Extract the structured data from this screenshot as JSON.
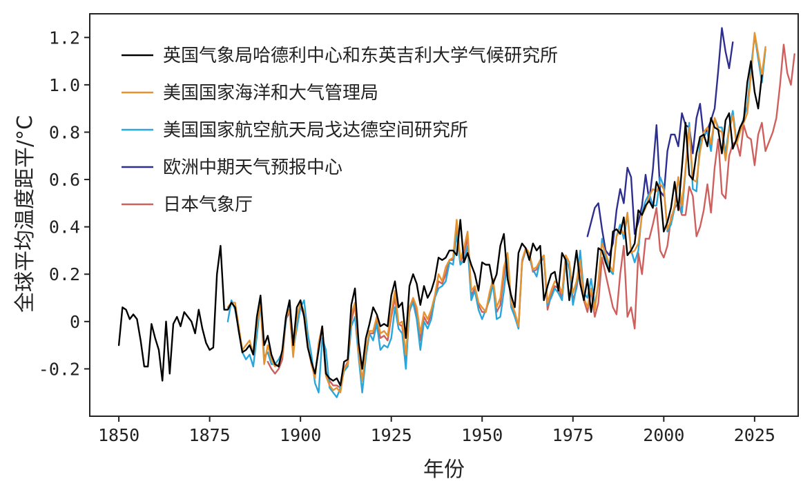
{
  "chart_data": {
    "type": "line",
    "xlabel": "年份",
    "ylabel": "全球平均温度距平/°C",
    "xlim": [
      1842,
      2037
    ],
    "ylim": [
      -0.4,
      1.3
    ],
    "xticks": [
      1850,
      1875,
      1900,
      1925,
      1950,
      1975,
      2000,
      2025
    ],
    "yticks": [
      {
        "value": -0.2,
        "label": "-0.2"
      },
      {
        "value": 0.0,
        "label": "0"
      },
      {
        "value": 0.2,
        "label": "0.2"
      },
      {
        "value": 0.4,
        "label": "0.4"
      },
      {
        "value": 0.6,
        "label": "0.6"
      },
      {
        "value": 0.8,
        "label": "0.8"
      },
      {
        "value": 1.0,
        "label": "1.0"
      },
      {
        "value": 1.2,
        "label": "1.2"
      }
    ],
    "grid": false,
    "legend_position": "top-left",
    "series": [
      {
        "name": "英国气象局哈德利中心和东英吉利大学气候研究所",
        "color": "#000000",
        "x_start": 1850,
        "values": [
          -0.1,
          0.06,
          0.05,
          0.01,
          0.03,
          0.01,
          -0.08,
          -0.19,
          -0.19,
          -0.01,
          -0.07,
          -0.12,
          -0.25,
          0.0,
          -0.22,
          -0.01,
          0.02,
          -0.02,
          0.04,
          0.02,
          0.0,
          -0.05,
          0.05,
          -0.03,
          -0.09,
          -0.12,
          -0.11,
          0.2,
          0.32,
          0.05,
          0.05,
          0.08,
          0.06,
          -0.04,
          -0.13,
          -0.12,
          -0.1,
          -0.14,
          0.02,
          0.11,
          -0.1,
          -0.06,
          -0.14,
          -0.18,
          -0.19,
          -0.12,
          0.02,
          0.09,
          -0.1,
          0.06,
          0.09,
          0.02,
          -0.11,
          -0.17,
          -0.22,
          -0.12,
          -0.02,
          -0.22,
          -0.24,
          -0.25,
          -0.24,
          -0.27,
          -0.17,
          -0.16,
          0.07,
          0.14,
          -0.09,
          -0.2,
          -0.07,
          -0.01,
          0.06,
          0.03,
          -0.02,
          -0.01,
          -0.02,
          0.11,
          0.17,
          0.06,
          0.08,
          -0.07,
          0.15,
          0.2,
          0.16,
          0.07,
          0.15,
          0.1,
          0.13,
          0.18,
          0.27,
          0.26,
          0.27,
          0.3,
          0.3,
          0.28,
          0.43,
          0.25,
          0.29,
          0.24,
          0.2,
          0.13,
          0.25,
          0.24,
          0.24,
          0.16,
          0.2,
          0.32,
          0.37,
          0.18,
          0.11,
          0.06,
          0.29,
          0.33,
          0.31,
          0.26,
          0.33,
          0.3,
          0.32,
          0.09,
          0.15,
          0.2,
          0.21,
          0.13,
          0.29,
          0.26,
          0.09,
          0.19,
          0.3,
          0.16,
          0.09,
          0.18,
          0.04,
          0.15,
          0.31,
          0.3,
          0.25,
          0.21,
          0.38,
          0.39,
          0.37,
          0.44,
          0.28,
          0.3,
          0.33,
          0.47,
          0.45,
          0.49,
          0.51,
          0.48,
          0.59,
          0.55,
          0.38,
          0.42,
          0.48,
          0.59,
          0.47,
          0.65,
          0.84,
          0.62,
          0.6,
          0.71,
          0.78,
          0.79,
          0.74,
          0.86,
          0.82,
          0.81,
          0.71,
          0.85,
          0.88,
          0.73,
          0.77,
          0.82,
          0.85,
          1.01,
          1.1,
          0.97,
          0.9,
          1.04
        ]
      },
      {
        "name": "美国国家海洋和大气管理局",
        "color": "#e8922e",
        "x_start": 1880,
        "values": [
          0.06,
          0.08,
          0.08,
          -0.02,
          -0.12,
          -0.1,
          -0.08,
          -0.14,
          -0.01,
          0.07,
          -0.18,
          -0.1,
          -0.16,
          -0.19,
          -0.18,
          -0.14,
          0.02,
          0.05,
          -0.15,
          0.02,
          0.08,
          0.04,
          -0.1,
          -0.18,
          -0.24,
          -0.09,
          -0.02,
          -0.23,
          -0.27,
          -0.29,
          -0.28,
          -0.3,
          -0.2,
          -0.18,
          0.03,
          0.08,
          -0.13,
          -0.25,
          -0.12,
          -0.04,
          -0.04,
          0.02,
          -0.05,
          -0.04,
          -0.06,
          0.04,
          0.13,
          -0.01,
          0.0,
          -0.14,
          0.06,
          0.1,
          0.06,
          -0.05,
          0.04,
          0.01,
          0.05,
          0.11,
          0.2,
          0.17,
          0.23,
          0.26,
          0.27,
          0.43,
          0.26,
          0.31,
          0.38,
          0.13,
          0.15,
          0.08,
          0.06,
          0.04,
          0.12,
          0.18,
          0.06,
          0.1,
          0.23,
          0.29,
          0.08,
          0.04,
          -0.02,
          0.26,
          0.31,
          0.29,
          0.22,
          0.23,
          0.26,
          0.28,
          0.08,
          0.13,
          0.17,
          0.16,
          0.12,
          0.28,
          0.25,
          0.12,
          0.17,
          0.26,
          0.1,
          0.06,
          0.14,
          0.05,
          0.17,
          0.33,
          0.29,
          0.24,
          0.21,
          0.36,
          0.39,
          0.37,
          0.46,
          0.29,
          0.3,
          0.33,
          0.45,
          0.48,
          0.53,
          0.56,
          0.55,
          0.58,
          0.56,
          0.39,
          0.43,
          0.49,
          0.61,
          0.49,
          0.65,
          0.82,
          0.6,
          0.59,
          0.72,
          0.8,
          0.82,
          0.75,
          0.86,
          0.81,
          0.8,
          0.68,
          0.81,
          0.87,
          0.75,
          0.8,
          0.84,
          0.88,
          1.04,
          1.22,
          1.13,
          1.04,
          1.16
        ]
      },
      {
        "name": "美国国家航空航天局戈达德空间研究所",
        "color": "#29a6db",
        "x_start": 1880,
        "values": [
          0.0,
          0.09,
          0.05,
          -0.03,
          -0.13,
          -0.16,
          -0.14,
          -0.19,
          -0.06,
          0.08,
          -0.15,
          -0.13,
          -0.18,
          -0.18,
          -0.16,
          -0.13,
          0.0,
          0.09,
          -0.12,
          -0.03,
          0.06,
          0.09,
          -0.05,
          -0.14,
          -0.26,
          -0.3,
          -0.07,
          -0.12,
          -0.28,
          -0.3,
          -0.32,
          -0.28,
          -0.21,
          -0.19,
          -0.02,
          0.02,
          -0.15,
          -0.3,
          -0.15,
          -0.05,
          -0.08,
          -0.01,
          -0.12,
          -0.1,
          -0.11,
          -0.07,
          0.06,
          -0.03,
          -0.05,
          -0.2,
          0.05,
          0.08,
          0.01,
          -0.12,
          0.0,
          -0.03,
          0.01,
          0.1,
          0.14,
          0.15,
          0.17,
          0.25,
          0.24,
          0.37,
          0.24,
          0.26,
          0.32,
          0.09,
          0.13,
          0.05,
          0.01,
          0.05,
          0.09,
          0.16,
          0.01,
          0.02,
          0.13,
          0.27,
          0.06,
          0.02,
          -0.03,
          0.25,
          0.31,
          0.27,
          0.22,
          0.19,
          0.26,
          0.27,
          0.07,
          0.1,
          0.14,
          0.12,
          0.09,
          0.27,
          0.22,
          0.07,
          0.15,
          0.3,
          0.12,
          0.1,
          0.18,
          0.07,
          0.16,
          0.35,
          0.27,
          0.22,
          0.2,
          0.36,
          0.41,
          0.35,
          0.45,
          0.3,
          0.25,
          0.3,
          0.46,
          0.51,
          0.54,
          0.49,
          0.49,
          0.61,
          0.57,
          0.38,
          0.41,
          0.48,
          0.61,
          0.46,
          0.64,
          0.84,
          0.56,
          0.55,
          0.76,
          0.79,
          0.8,
          0.72,
          0.86,
          0.82,
          0.82,
          0.71,
          0.82,
          0.89,
          0.76,
          0.81,
          0.86,
          0.91,
          1.07,
          1.21,
          1.11,
          1.01,
          1.15
        ]
      },
      {
        "name": "欧洲中期天气预报中心",
        "color": "#2d2e8f",
        "x_start": 1979,
        "values": [
          0.36,
          0.42,
          0.48,
          0.5,
          0.39,
          0.3,
          0.28,
          0.33,
          0.47,
          0.56,
          0.5,
          0.65,
          0.61,
          0.37,
          0.42,
          0.49,
          0.62,
          0.51,
          0.64,
          0.83,
          0.55,
          0.53,
          0.72,
          0.79,
          0.79,
          0.74,
          0.88,
          0.83,
          0.82,
          0.71,
          0.86,
          0.92,
          0.78,
          0.81,
          0.85,
          0.9,
          1.06,
          1.24,
          1.14,
          1.07,
          1.18
        ]
      },
      {
        "name": "日本气象厅",
        "color": "#cf5f5c",
        "x_start": 1891,
        "values": [
          -0.17,
          -0.2,
          -0.22,
          -0.2,
          -0.16,
          0.01,
          0.04,
          -0.14,
          0.01,
          0.06,
          0.03,
          -0.1,
          -0.18,
          -0.23,
          -0.1,
          -0.02,
          -0.21,
          -0.25,
          -0.27,
          -0.27,
          -0.28,
          -0.2,
          -0.17,
          0.0,
          0.07,
          -0.13,
          -0.25,
          -0.13,
          -0.05,
          -0.05,
          0.01,
          -0.07,
          -0.06,
          -0.08,
          0.02,
          0.1,
          -0.01,
          -0.02,
          -0.16,
          0.04,
          0.09,
          0.03,
          -0.08,
          0.02,
          -0.01,
          0.03,
          0.1,
          0.17,
          0.16,
          0.2,
          0.26,
          0.26,
          0.4,
          0.25,
          0.29,
          0.35,
          0.11,
          0.14,
          0.07,
          0.04,
          0.04,
          0.1,
          0.16,
          0.04,
          0.07,
          0.2,
          0.28,
          0.07,
          0.03,
          -0.03,
          0.25,
          0.3,
          0.28,
          0.21,
          0.22,
          0.25,
          0.27,
          0.05,
          0.11,
          0.15,
          0.14,
          0.1,
          0.26,
          0.23,
          0.09,
          0.14,
          0.24,
          0.09,
          0.04,
          0.13,
          0.02,
          0.08,
          0.27,
          0.2,
          0.13,
          0.06,
          0.03,
          0.2,
          0.32,
          0.02,
          0.06,
          -0.03,
          0.29,
          0.2,
          0.35,
          0.35,
          0.41,
          0.48,
          0.3,
          0.27,
          0.32,
          0.44,
          0.48,
          0.5,
          0.45,
          0.45,
          0.57,
          0.53,
          0.36,
          0.4,
          0.47,
          0.58,
          0.46,
          0.65,
          0.77,
          0.54,
          0.52,
          0.7,
          0.75,
          0.76,
          0.7,
          0.83,
          0.78,
          0.77,
          0.66,
          0.79,
          0.84,
          0.72,
          0.76,
          0.8,
          0.86,
          1.0,
          1.17,
          1.05,
          1.0,
          1.13
        ]
      }
    ]
  }
}
